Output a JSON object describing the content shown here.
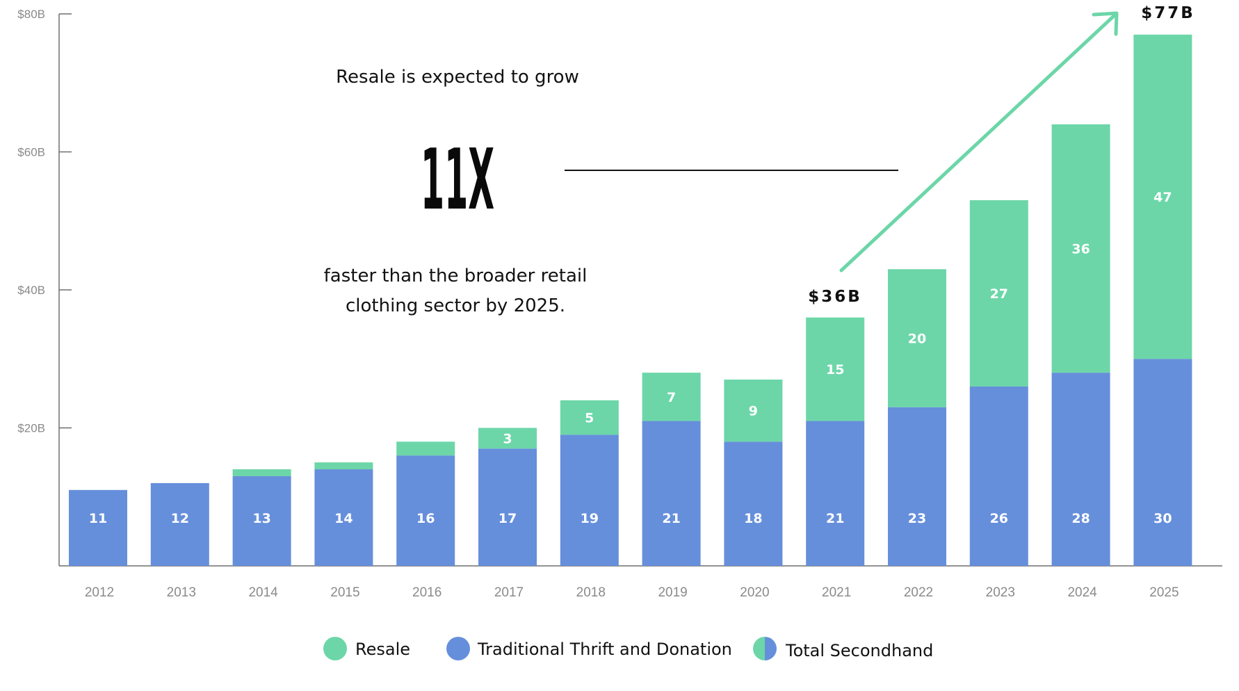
{
  "chart_data": {
    "type": "bar",
    "stacked": true,
    "categories": [
      "2012",
      "2013",
      "2014",
      "2015",
      "2016",
      "2017",
      "2018",
      "2019",
      "2020",
      "2021",
      "2022",
      "2023",
      "2024",
      "2025"
    ],
    "series": [
      {
        "name": "Traditional Thrift and Donation",
        "color": "#668fdb",
        "values": [
          11,
          12,
          13,
          14,
          16,
          17,
          19,
          21,
          18,
          21,
          23,
          26,
          28,
          30
        ],
        "labels": [
          "11",
          "12",
          "13",
          "14",
          "16",
          "17",
          "19",
          "21",
          "18",
          "21",
          "23",
          "26",
          "28",
          "30"
        ]
      },
      {
        "name": "Resale",
        "color": "#6cd6a8",
        "values": [
          0,
          0,
          1,
          1,
          2,
          3,
          5,
          7,
          9,
          15,
          20,
          27,
          36,
          47
        ],
        "labels": [
          "",
          "",
          "",
          "",
          "",
          "3",
          "5",
          "7",
          "9",
          "15",
          "20",
          "27",
          "36",
          "47"
        ]
      }
    ],
    "ylim": [
      0,
      80
    ],
    "yticks": [
      20,
      40,
      60,
      80
    ],
    "ytick_labels": [
      "$20B",
      "$40B",
      "$60B",
      "$80B"
    ],
    "grid": false,
    "annotations": {
      "total_2021": "$36B",
      "total_2025": "$77B",
      "arrow_from": "2021",
      "arrow_to": "2025",
      "arrow_color": "#6cd6a8"
    },
    "callout": {
      "line1": "Resale is expected to grow",
      "big": "11X",
      "line2": "faster than the broader retail",
      "line3": "clothing sector by 2025."
    },
    "legend": {
      "placement": "bottom",
      "items": [
        {
          "label": "Resale",
          "color": "#6cd6a8"
        },
        {
          "label": "Traditional Thrift and Donation",
          "color": "#668fdb"
        },
        {
          "label": "Total Secondhand",
          "colors": [
            "#6cd6a8",
            "#668fdb"
          ]
        }
      ]
    }
  }
}
